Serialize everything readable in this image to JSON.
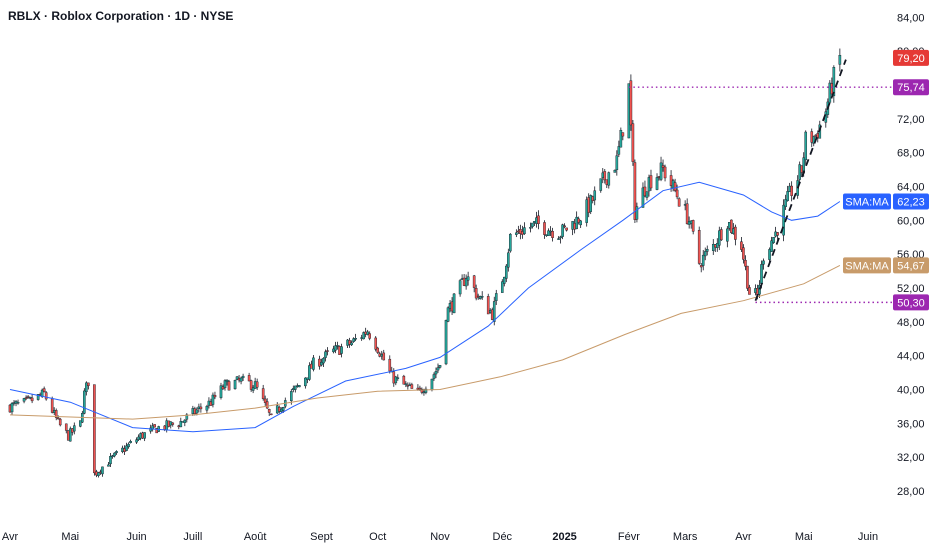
{
  "header": {
    "title": "RBLX · Roblox Corporation · 1D · NYSE"
  },
  "colors": {
    "up": "#26a69a",
    "down": "#ef5350",
    "sma_short": "#2962ff",
    "sma_long": "#c89b6a",
    "level": "#9c27b0",
    "last_price": "#e53935"
  },
  "chart_data": {
    "type": "candlestick",
    "title": "RBLX · Roblox Corporation · 1D · NYSE",
    "ylim": [
      26,
      86
    ],
    "y_ticks": [
      "28,00",
      "32,00",
      "36,00",
      "40,00",
      "44,00",
      "48,00",
      "52,00",
      "56,00",
      "60,00",
      "64,00",
      "68,00",
      "72,00",
      "76,00",
      "80,00",
      "84,00"
    ],
    "x_ticks": [
      {
        "label": "Avr",
        "x": "2024-04-01"
      },
      {
        "label": "Mai",
        "x": "2024-05-01"
      },
      {
        "label": "Juin",
        "x": "2024-06-03"
      },
      {
        "label": "Juill",
        "x": "2024-07-01"
      },
      {
        "label": "Août",
        "x": "2024-08-01"
      },
      {
        "label": "Sept",
        "x": "2024-09-03"
      },
      {
        "label": "Oct",
        "x": "2024-10-01"
      },
      {
        "label": "Nov",
        "x": "2024-11-01"
      },
      {
        "label": "Déc",
        "x": "2024-12-02"
      },
      {
        "label": "2025",
        "x": "2025-01-02",
        "bold": true
      },
      {
        "label": "Févr",
        "x": "2025-02-03"
      },
      {
        "label": "Mars",
        "x": "2025-03-03"
      },
      {
        "label": "Avr",
        "x": "2025-04-01"
      },
      {
        "label": "Mai",
        "x": "2025-05-01"
      },
      {
        "label": "Juin",
        "x": "2025-06-02"
      }
    ],
    "price_path": [
      [
        "2024-04-01",
        38.0
      ],
      [
        "2024-04-10",
        38.5
      ],
      [
        "2024-04-18",
        39.5
      ],
      [
        "2024-04-25",
        36.0
      ],
      [
        "2024-04-30",
        34.5
      ],
      [
        "2024-05-06",
        36.0
      ],
      [
        "2024-05-08",
        39.5
      ],
      [
        "2024-05-10",
        41.0
      ],
      [
        "2024-05-13",
        30.0
      ],
      [
        "2024-05-20",
        31.5
      ],
      [
        "2024-05-28",
        33.0
      ],
      [
        "2024-06-05",
        34.5
      ],
      [
        "2024-06-14",
        35.5
      ],
      [
        "2024-06-24",
        36.0
      ],
      [
        "2024-07-03",
        37.5
      ],
      [
        "2024-07-10",
        38.5
      ],
      [
        "2024-07-17",
        40.5
      ],
      [
        "2024-07-25",
        41.0
      ],
      [
        "2024-08-01",
        40.5
      ],
      [
        "2024-08-05",
        38.5
      ],
      [
        "2024-08-09",
        36.5
      ],
      [
        "2024-08-15",
        38.5
      ],
      [
        "2024-08-23",
        40.5
      ],
      [
        "2024-08-30",
        43.0
      ],
      [
        "2024-09-09",
        44.5
      ],
      [
        "2024-09-18",
        45.5
      ],
      [
        "2024-09-26",
        47.0
      ],
      [
        "2024-10-01",
        45.0
      ],
      [
        "2024-10-08",
        41.5
      ],
      [
        "2024-10-14",
        40.5
      ],
      [
        "2024-10-21",
        39.5
      ],
      [
        "2024-10-28",
        41.5
      ],
      [
        "2024-11-01",
        43.0
      ],
      [
        "2024-11-04",
        49.0
      ],
      [
        "2024-11-08",
        50.5
      ],
      [
        "2024-11-14",
        53.5
      ],
      [
        "2024-11-20",
        51.0
      ],
      [
        "2024-11-27",
        49.0
      ],
      [
        "2024-12-03",
        54.0
      ],
      [
        "2024-12-06",
        58.0
      ],
      [
        "2024-12-13",
        59.0
      ],
      [
        "2024-12-20",
        59.5
      ],
      [
        "2024-12-31",
        58.5
      ],
      [
        "2025-01-08",
        60.0
      ],
      [
        "2025-01-15",
        62.0
      ],
      [
        "2025-01-22",
        65.0
      ],
      [
        "2025-01-28",
        67.0
      ],
      [
        "2025-01-31",
        71.0
      ],
      [
        "2025-02-03",
        75.7
      ],
      [
        "2025-02-06",
        61.0
      ],
      [
        "2025-02-12",
        64.5
      ],
      [
        "2025-02-20",
        66.0
      ],
      [
        "2025-02-27",
        63.0
      ],
      [
        "2025-03-05",
        60.0
      ],
      [
        "2025-03-10",
        55.0
      ],
      [
        "2025-03-17",
        57.0
      ],
      [
        "2025-03-24",
        60.0
      ],
      [
        "2025-03-31",
        57.0
      ],
      [
        "2025-04-04",
        51.5
      ],
      [
        "2025-04-08",
        51.0
      ],
      [
        "2025-04-11",
        56.0
      ],
      [
        "2025-04-17",
        58.5
      ],
      [
        "2025-04-24",
        63.0
      ],
      [
        "2025-04-30",
        66.0
      ],
      [
        "2025-05-02",
        69.5
      ],
      [
        "2025-05-07",
        70.0
      ],
      [
        "2025-05-12",
        73.0
      ],
      [
        "2025-05-15",
        76.0
      ],
      [
        "2025-05-19",
        79.2
      ]
    ],
    "series": [
      {
        "name": "SMA:MA",
        "value_label": "62,23",
        "last": 62.23,
        "points": [
          [
            "2024-04-01",
            40.0
          ],
          [
            "2024-05-01",
            38.5
          ],
          [
            "2024-06-01",
            35.5
          ],
          [
            "2024-07-01",
            35.0
          ],
          [
            "2024-08-01",
            35.5
          ],
          [
            "2024-08-20",
            38.0
          ],
          [
            "2024-09-15",
            41.0
          ],
          [
            "2024-10-15",
            42.5
          ],
          [
            "2024-11-01",
            43.8
          ],
          [
            "2024-11-25",
            47.5
          ],
          [
            "2024-12-15",
            52.0
          ],
          [
            "2025-01-10",
            56.5
          ],
          [
            "2025-01-31",
            60.0
          ],
          [
            "2025-02-20",
            63.5
          ],
          [
            "2025-03-10",
            64.5
          ],
          [
            "2025-04-01",
            63.0
          ],
          [
            "2025-04-15",
            61.0
          ],
          [
            "2025-04-25",
            60.0
          ],
          [
            "2025-05-08",
            60.5
          ],
          [
            "2025-05-19",
            62.23
          ]
        ]
      },
      {
        "name": "SMA:MA",
        "value_label": "54,67",
        "last": 54.67,
        "points": [
          [
            "2024-04-01",
            37.0
          ],
          [
            "2024-06-01",
            36.5
          ],
          [
            "2024-07-01",
            37.0
          ],
          [
            "2024-08-01",
            37.8
          ],
          [
            "2024-09-01",
            39.0
          ],
          [
            "2024-10-01",
            39.8
          ],
          [
            "2024-11-01",
            40.0
          ],
          [
            "2024-12-01",
            41.5
          ],
          [
            "2025-01-01",
            43.5
          ],
          [
            "2025-02-01",
            46.5
          ],
          [
            "2025-03-01",
            49.0
          ],
          [
            "2025-04-01",
            50.5
          ],
          [
            "2025-05-01",
            52.5
          ],
          [
            "2025-05-19",
            54.67
          ]
        ]
      }
    ],
    "levels": [
      {
        "value": 75.74,
        "label": "75,74",
        "from": "2025-02-03"
      },
      {
        "value": 50.3,
        "label": "50,30",
        "from": "2025-04-07"
      }
    ],
    "last_price": {
      "value": 79.2,
      "label": "79,20"
    },
    "trendline": {
      "from": [
        "2025-04-07",
        50.5
      ],
      "to": [
        "2025-05-22",
        79.0
      ]
    }
  }
}
